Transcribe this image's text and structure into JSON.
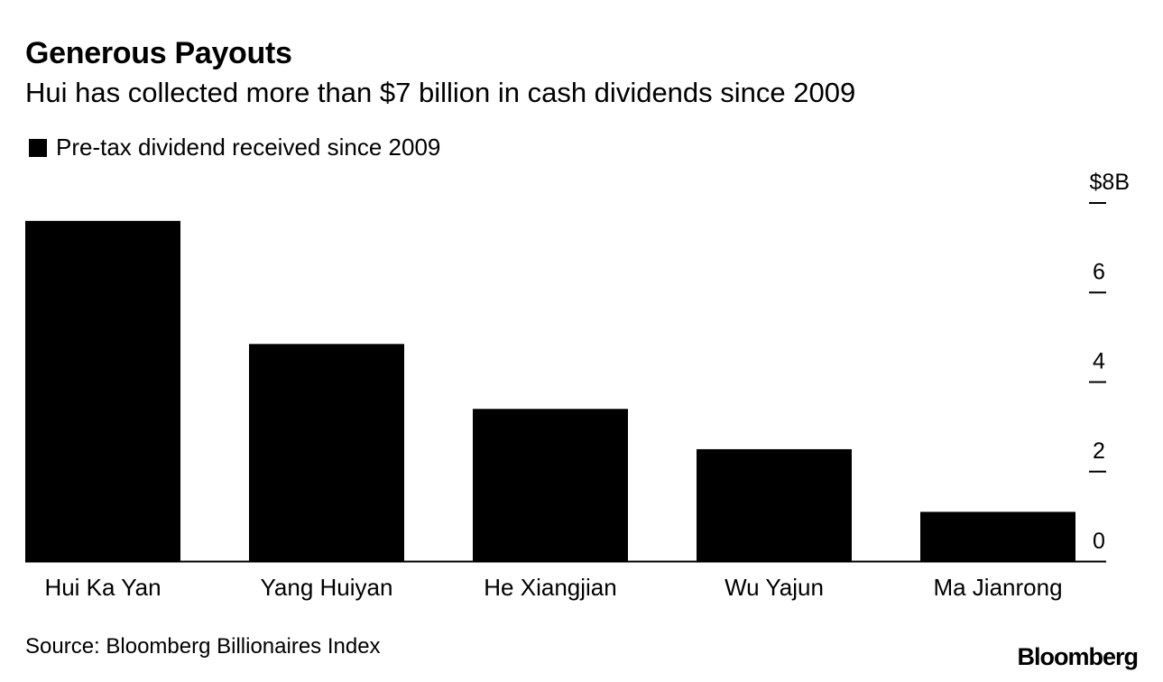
{
  "chart_data": {
    "type": "bar",
    "title": "Generous Payouts",
    "subtitle": "Hui has collected more than $7 billion in cash dividends since 2009",
    "legend": [
      "Pre-tax dividend received since 2009"
    ],
    "categories": [
      "Hui Ka Yan",
      "Yang Huiyan",
      "He Xiangjian",
      "Wu Yajun",
      "Ma Jianrong"
    ],
    "series": [
      {
        "name": "Pre-tax dividend received since 2009",
        "values": [
          7.6,
          4.85,
          3.4,
          2.5,
          1.1
        ]
      }
    ],
    "ylim": [
      0,
      8
    ],
    "yticks": [
      0,
      2,
      4,
      6,
      8
    ],
    "ytick_labels": [
      "0",
      "2",
      "4",
      "6",
      "$8B"
    ],
    "bar_color": "#000000",
    "xlabel": "",
    "ylabel": "",
    "source": "Source: Bloomberg Billionaires Index",
    "brand": "Bloomberg"
  }
}
